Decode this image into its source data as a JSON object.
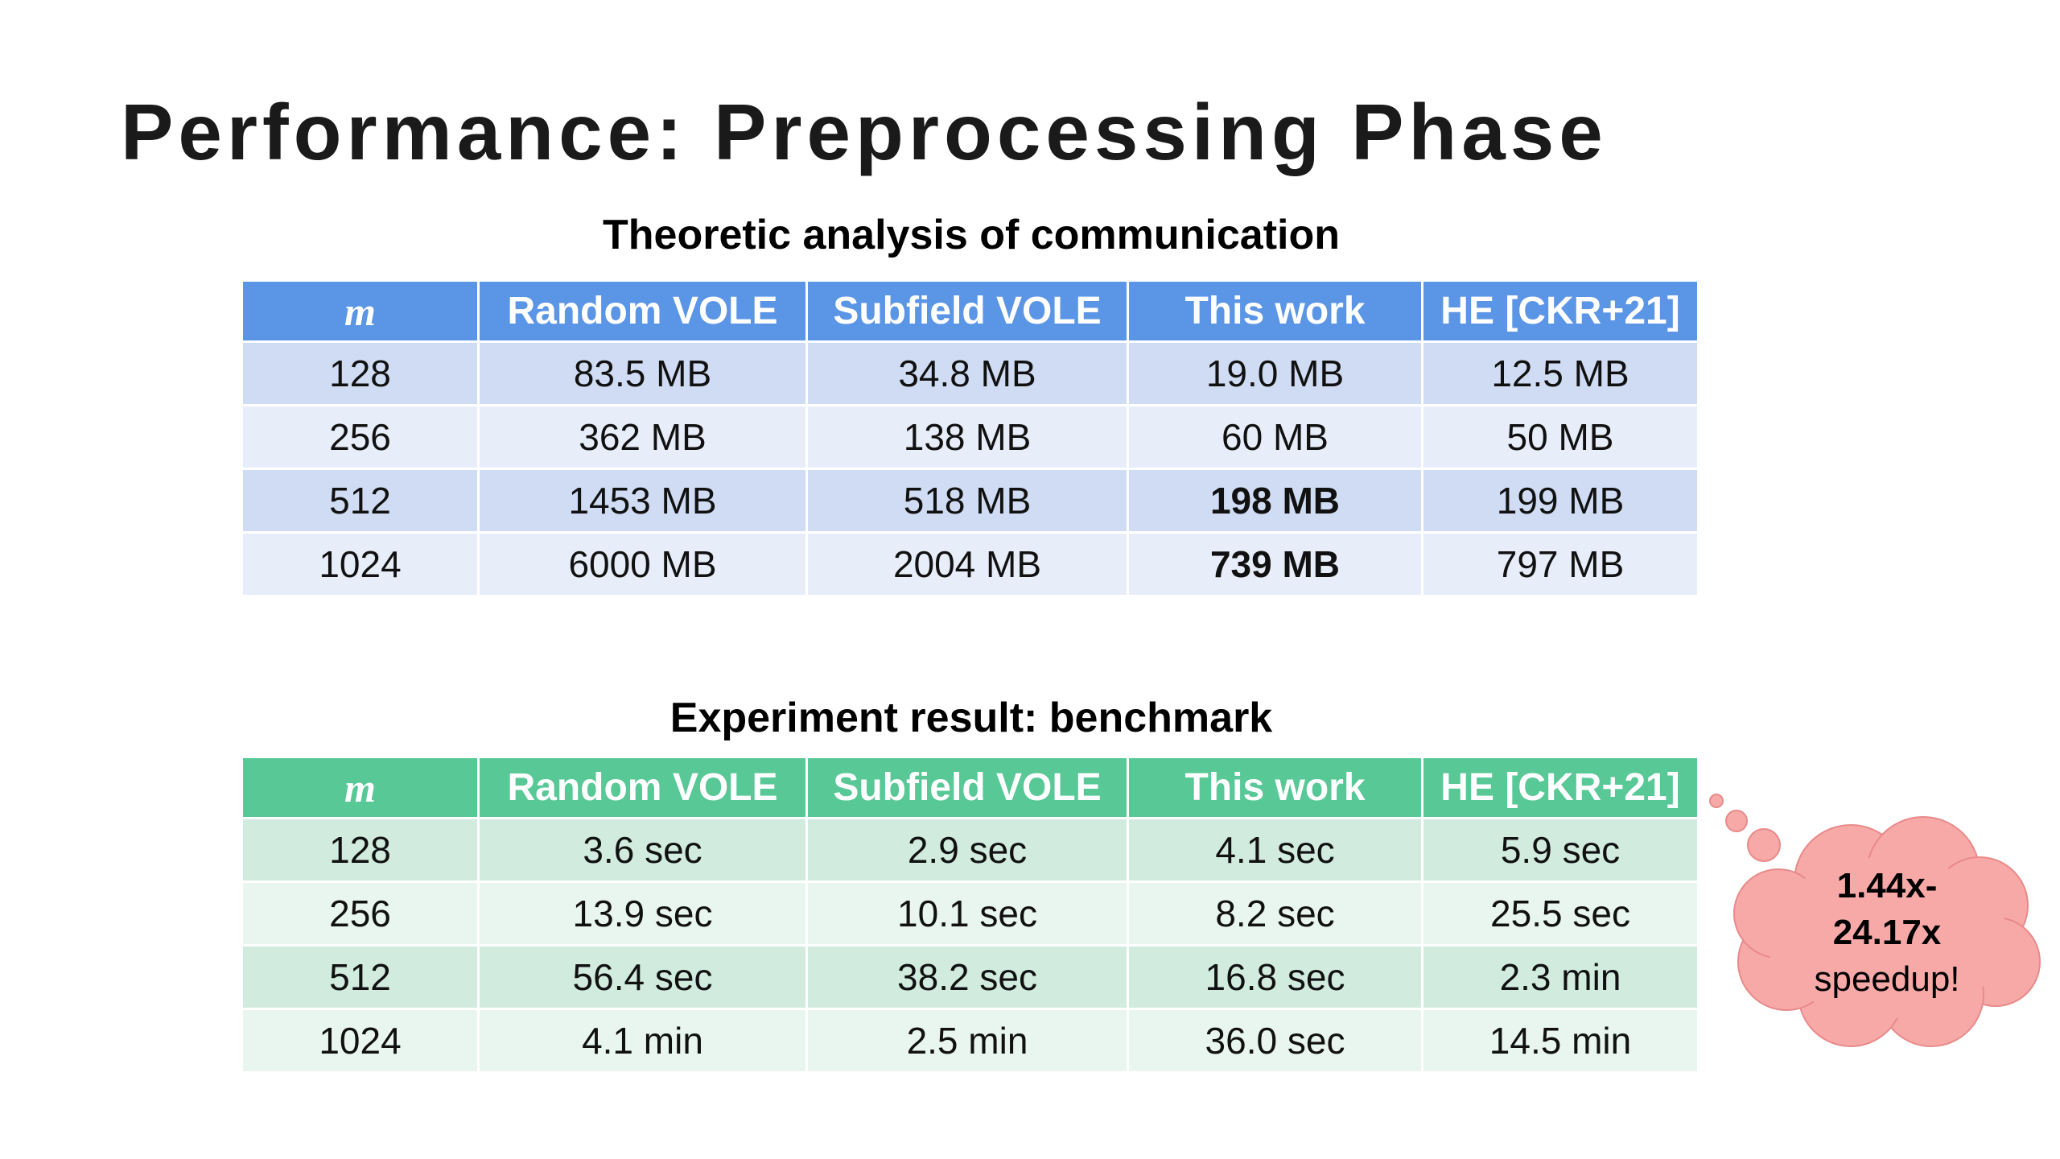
{
  "title": "Performance: Preprocessing Phase",
  "tables": [
    {
      "caption": "Theoretic analysis of communication",
      "header_color": "#5b95e6",
      "row_colors": [
        "#cfdcf3",
        "#e8eef9"
      ],
      "columns": [
        "m",
        "Random VOLE",
        "Subfield VOLE",
        "This work",
        "HE [CKR+21]"
      ],
      "rows": [
        [
          "128",
          "83.5 MB",
          "34.8 MB",
          "19.0 MB",
          "12.5 MB"
        ],
        [
          "256",
          "362 MB",
          "138 MB",
          "60 MB",
          "50 MB"
        ],
        [
          "512",
          "1453 MB",
          "518 MB",
          {
            "text": "198 MB",
            "bold": true
          },
          "199 MB"
        ],
        [
          "1024",
          "6000 MB",
          "2004 MB",
          {
            "text": "739 MB",
            "bold": true
          },
          "797 MB"
        ]
      ]
    },
    {
      "caption": "Experiment result: benchmark",
      "header_color": "#57c896",
      "row_colors": [
        "#d1ecdf",
        "#e9f6ef"
      ],
      "columns": [
        "m",
        "Random VOLE",
        "Subfield VOLE",
        "This work",
        "HE [CKR+21]"
      ],
      "rows": [
        [
          "128",
          "3.6 sec",
          "2.9 sec",
          "4.1 sec",
          "5.9 sec"
        ],
        [
          "256",
          "13.9 sec",
          "10.1 sec",
          "8.2 sec",
          "25.5 sec"
        ],
        [
          "512",
          "56.4 sec",
          "38.2 sec",
          "16.8 sec",
          "2.3 min"
        ],
        [
          "1024",
          "4.1 min",
          "2.5 min",
          "36.0 sec",
          "14.5 min"
        ]
      ]
    }
  ],
  "callout": {
    "color": "#f7a9a8",
    "lines": [
      {
        "text": "1.44x-",
        "bold": true
      },
      {
        "text": "24.17x",
        "bold": true
      },
      {
        "text": "speedup!",
        "bold": false
      }
    ]
  }
}
